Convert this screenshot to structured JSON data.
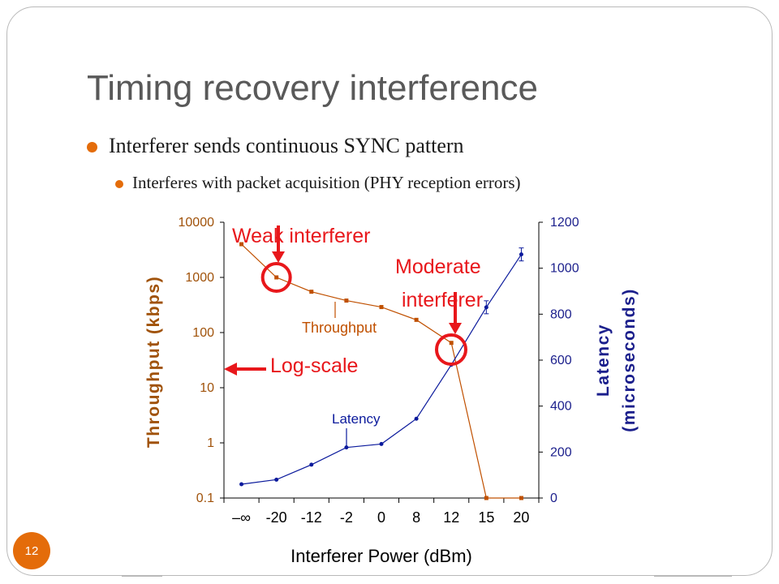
{
  "slide": {
    "title": "Timing recovery interference",
    "bullets": [
      "Interferer sends continuous SYNC pattern",
      "Interferes with packet acquisition (PHY reception errors)"
    ],
    "page_number": "12"
  },
  "colors": {
    "title": "#595959",
    "bullet_marker": "#e46c0a",
    "throughput": "#c05000",
    "latency": "#0b1a9c",
    "annotation": "#e8171b",
    "throughput_axis_label": "#a0520a",
    "latency_axis_label": "#1b1f8c"
  },
  "chart_data": {
    "type": "line",
    "xlabel": "Interferer Power (dBm)",
    "categories": [
      "–∞",
      "-20",
      "-12",
      "-2",
      "0",
      "8",
      "12",
      "15",
      "20"
    ],
    "y_left": {
      "label": "Throughput (kbps)",
      "scale": "log",
      "ylim": [
        0.1,
        10000
      ],
      "ticks": [
        "10000",
        "1000",
        "100",
        "10",
        "1",
        "0.1"
      ]
    },
    "y_right": {
      "label_line1": "Latency",
      "label_line2": "(microseconds)",
      "scale": "linear",
      "ylim": [
        0,
        1200
      ],
      "ticks": [
        "1200",
        "1000",
        "800",
        "600",
        "400",
        "200",
        "0"
      ]
    },
    "grid": false,
    "series": [
      {
        "name": "Throughput",
        "axis": "left",
        "values": [
          4000,
          1000,
          550,
          380,
          290,
          170,
          65,
          0.1,
          0.1
        ]
      },
      {
        "name": "Latency",
        "axis": "right",
        "values": [
          60,
          80,
          145,
          220,
          235,
          345,
          580,
          830,
          1060
        ]
      }
    ],
    "annotations": {
      "weak": "Weak interferer",
      "moderate_line1": "Moderate",
      "moderate_line2": "interferer",
      "log_scale": "Log-scale"
    }
  }
}
